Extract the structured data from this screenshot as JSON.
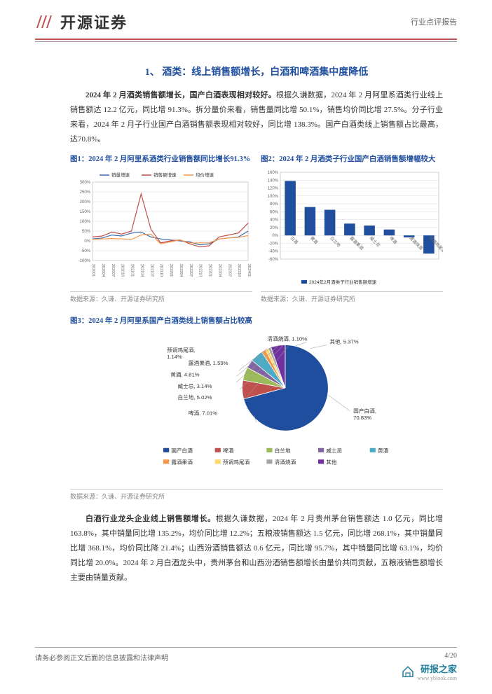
{
  "header": {
    "company": "开源证券",
    "report_type": "行业点评报告"
  },
  "section1": {
    "title": "1、 酒类：线上销售额增长，白酒和啤酒集中度降低",
    "para1_bold": "2024 年 2 月酒类销售额增长，国产白酒表现相对较好。",
    "para1_rest": "根据久谦数据，2024 年 2 月阿里系酒类行业线上销售额达 12.2 亿元，同比增 91.3%。拆分量价来看，销售量同比增 50.1%，销售均价同比增 27.5%。分子行业来看，2024 年 2 月子行业国产白酒销售额表现相对较好，同比增 138.3%。国产白酒类线上销售额占比最高，达70.8%。"
  },
  "chart1": {
    "title": "图1：2024 年 2 月阿里系酒类行业销售额同比增长91.3%",
    "type": "line",
    "x_labels": [
      "202001",
      "202004",
      "202007",
      "202010",
      "202101",
      "202104",
      "202107",
      "202110",
      "202201",
      "202204",
      "202207",
      "202210",
      "202301",
      "202304",
      "202307",
      "202310",
      "202401"
    ],
    "ylim": [
      -100,
      300
    ],
    "ytick_step": 50,
    "series": [
      {
        "name": "销量增速",
        "color": "#3b6fb0",
        "data": [
          10,
          15,
          30,
          25,
          40,
          45,
          20,
          10,
          5,
          0,
          -5,
          -20,
          -15,
          10,
          15,
          20,
          50
        ]
      },
      {
        "name": "销售额增速",
        "color": "#c0504d",
        "data": [
          20,
          25,
          45,
          35,
          50,
          240,
          60,
          -10,
          0,
          5,
          -15,
          -30,
          -25,
          20,
          30,
          40,
          91
        ]
      },
      {
        "name": "均价增速",
        "color": "#f79646",
        "data": [
          8,
          10,
          12,
          10,
          8,
          30,
          35,
          -15,
          -5,
          5,
          -10,
          -10,
          -10,
          10,
          15,
          18,
          27
        ]
      }
    ],
    "grid_color": "#d9d9d9",
    "background_color": "#ffffff",
    "source": "数据来源：久谦、开源证券研究所"
  },
  "chart2": {
    "title": "图2：2024 年 2 月酒类子行业国产白酒销售额增幅较大",
    "type": "bar",
    "categories": [
      "白酒",
      "黄酒",
      "白兰地",
      "露酒果酒",
      "威士忌",
      "啤酒",
      "清酒烧酒",
      "预调鸡尾酒"
    ],
    "values": [
      138,
      72,
      65,
      30,
      25,
      15,
      -5,
      -46
    ],
    "bar_color": "#1f4e9e",
    "legend": "2024年2月酒类子行业销售额增速",
    "ylim": [
      -60,
      160
    ],
    "ytick_step": 20,
    "grid_color": "#d9d9d9",
    "background_color": "#ffffff",
    "source": "数据来源：久谦、开源证券研究所"
  },
  "chart3": {
    "title": "图3：2024 年 2 月阿里系国产白酒类线上销售额占比较高",
    "type": "pie",
    "slices": [
      {
        "label": "国产白酒",
        "value": 70.83,
        "color": "#1f4e9e"
      },
      {
        "label": "啤酒",
        "value": 7.01,
        "color": "#c0504d"
      },
      {
        "label": "白兰地",
        "value": 5.02,
        "color": "#9bbb59"
      },
      {
        "label": "威士忌",
        "value": 3.14,
        "color": "#8064a2"
      },
      {
        "label": "黄酒",
        "value": 4.81,
        "color": "#4bacc6"
      },
      {
        "label": "露酒果酒",
        "value": 1.59,
        "color": "#f79646"
      },
      {
        "label": "预调鸡尾酒",
        "value": 1.14,
        "color": "#ffd966"
      },
      {
        "label": "清酒烧酒",
        "value": 1.1,
        "color": "#a5a5a5"
      },
      {
        "label": "其他",
        "value": 5.37,
        "color": "#7030a0"
      }
    ],
    "legend_colors": [
      "#1f4e9e",
      "#c0504d",
      "#9bbb59",
      "#8064a2",
      "#4bacc6",
      "#f79646",
      "#ffd966",
      "#a5a5a5",
      "#7030a0"
    ],
    "legend_labels": [
      "国产白酒",
      "啤酒",
      "白兰地",
      "威士忌",
      "黄酒",
      "露酒果酒",
      "预调鸡尾酒",
      "清酒烧酒",
      "其他"
    ],
    "background_color": "#ffffff",
    "source": "数据来源：久谦、开源证券研究所"
  },
  "section2": {
    "para_bold": "白酒行业龙头企业线上销售额增长。",
    "para_rest": "根据久谦数据，2024 年 2 月贵州茅台销售额达 1.0 亿元，同比增 163.8%，其中销量同比增 135.2%，均价同比增 12.2%；五粮液销售额达 1.5 亿元，同比增 268.1%，其中销量同比增 368.1%，均价同比降 21.4%；山西汾酒销售额达 0.6 亿元，同比增 95.7%，其中销量同比增 63.1%，均价同比增 20.0%。2024 年 2 月白酒龙头中，贵州茅台和山西汾酒销售额增长由量价共同贡献，五粮液销售额增长主要由销量贡献。"
  },
  "footer": {
    "left": "请务必参阅正文后面的信息披露和法律声明",
    "page": "4/20",
    "brand": "研报之家",
    "url": "www.yblook.com"
  }
}
